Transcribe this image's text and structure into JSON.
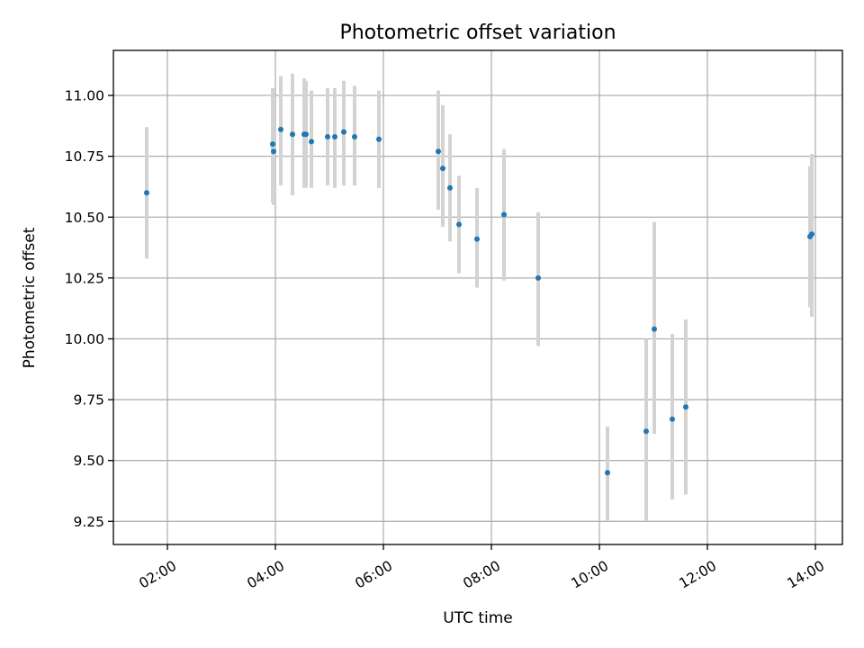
{
  "chart_data": {
    "type": "scatter",
    "title": "Photometric offset variation",
    "xlabel": "UTC time",
    "ylabel": "Photometric offset",
    "xlim": [
      "01:00",
      "14:30"
    ],
    "ylim": [
      9.155,
      11.185
    ],
    "grid": true,
    "x_ticks": [
      "02:00",
      "04:00",
      "06:00",
      "08:00",
      "10:00",
      "12:00",
      "14:00"
    ],
    "y_ticks": [
      "9.25",
      "9.50",
      "9.75",
      "10.00",
      "10.25",
      "10.50",
      "10.75",
      "11.00"
    ],
    "errorbar_color": "#d3d3d3",
    "point_color": "#1f77b4",
    "points": [
      {
        "x": "01:37",
        "y": 10.6,
        "ylo": 10.33,
        "yhi": 10.87
      },
      {
        "x": "03:57",
        "y": 10.8,
        "ylo": 10.56,
        "yhi": 11.03
      },
      {
        "x": "03:58",
        "y": 10.77,
        "ylo": 10.55,
        "yhi": 11.0
      },
      {
        "x": "04:06",
        "y": 10.86,
        "ylo": 10.63,
        "yhi": 11.08
      },
      {
        "x": "04:19",
        "y": 10.84,
        "ylo": 10.59,
        "yhi": 11.09
      },
      {
        "x": "04:32",
        "y": 10.84,
        "ylo": 10.62,
        "yhi": 11.07
      },
      {
        "x": "04:34",
        "y": 10.84,
        "ylo": 10.62,
        "yhi": 11.06
      },
      {
        "x": "04:40",
        "y": 10.81,
        "ylo": 10.62,
        "yhi": 11.02
      },
      {
        "x": "04:58",
        "y": 10.83,
        "ylo": 10.63,
        "yhi": 11.03
      },
      {
        "x": "05:06",
        "y": 10.83,
        "ylo": 10.62,
        "yhi": 11.03
      },
      {
        "x": "05:16",
        "y": 10.85,
        "ylo": 10.63,
        "yhi": 11.06
      },
      {
        "x": "05:28",
        "y": 10.83,
        "ylo": 10.63,
        "yhi": 11.04
      },
      {
        "x": "05:55",
        "y": 10.82,
        "ylo": 10.62,
        "yhi": 11.02
      },
      {
        "x": "07:01",
        "y": 10.77,
        "ylo": 10.53,
        "yhi": 11.02
      },
      {
        "x": "07:06",
        "y": 10.7,
        "ylo": 10.46,
        "yhi": 10.96
      },
      {
        "x": "07:14",
        "y": 10.62,
        "ylo": 10.4,
        "yhi": 10.84
      },
      {
        "x": "07:24",
        "y": 10.47,
        "ylo": 10.27,
        "yhi": 10.67
      },
      {
        "x": "07:44",
        "y": 10.41,
        "ylo": 10.21,
        "yhi": 10.62
      },
      {
        "x": "08:14",
        "y": 10.51,
        "ylo": 10.24,
        "yhi": 10.78
      },
      {
        "x": "08:52",
        "y": 10.25,
        "ylo": 9.97,
        "yhi": 10.52
      },
      {
        "x": "10:09",
        "y": 9.45,
        "ylo": 9.25,
        "yhi": 9.64
      },
      {
        "x": "10:52",
        "y": 9.62,
        "ylo": 9.25,
        "yhi": 10.0
      },
      {
        "x": "11:01",
        "y": 10.04,
        "ylo": 9.61,
        "yhi": 10.48
      },
      {
        "x": "11:21",
        "y": 9.67,
        "ylo": 9.34,
        "yhi": 10.02
      },
      {
        "x": "11:36",
        "y": 9.72,
        "ylo": 9.36,
        "yhi": 10.08
      },
      {
        "x": "13:54",
        "y": 10.42,
        "ylo": 10.13,
        "yhi": 10.71
      },
      {
        "x": "13:56",
        "y": 10.43,
        "ylo": 10.09,
        "yhi": 10.76
      }
    ]
  }
}
